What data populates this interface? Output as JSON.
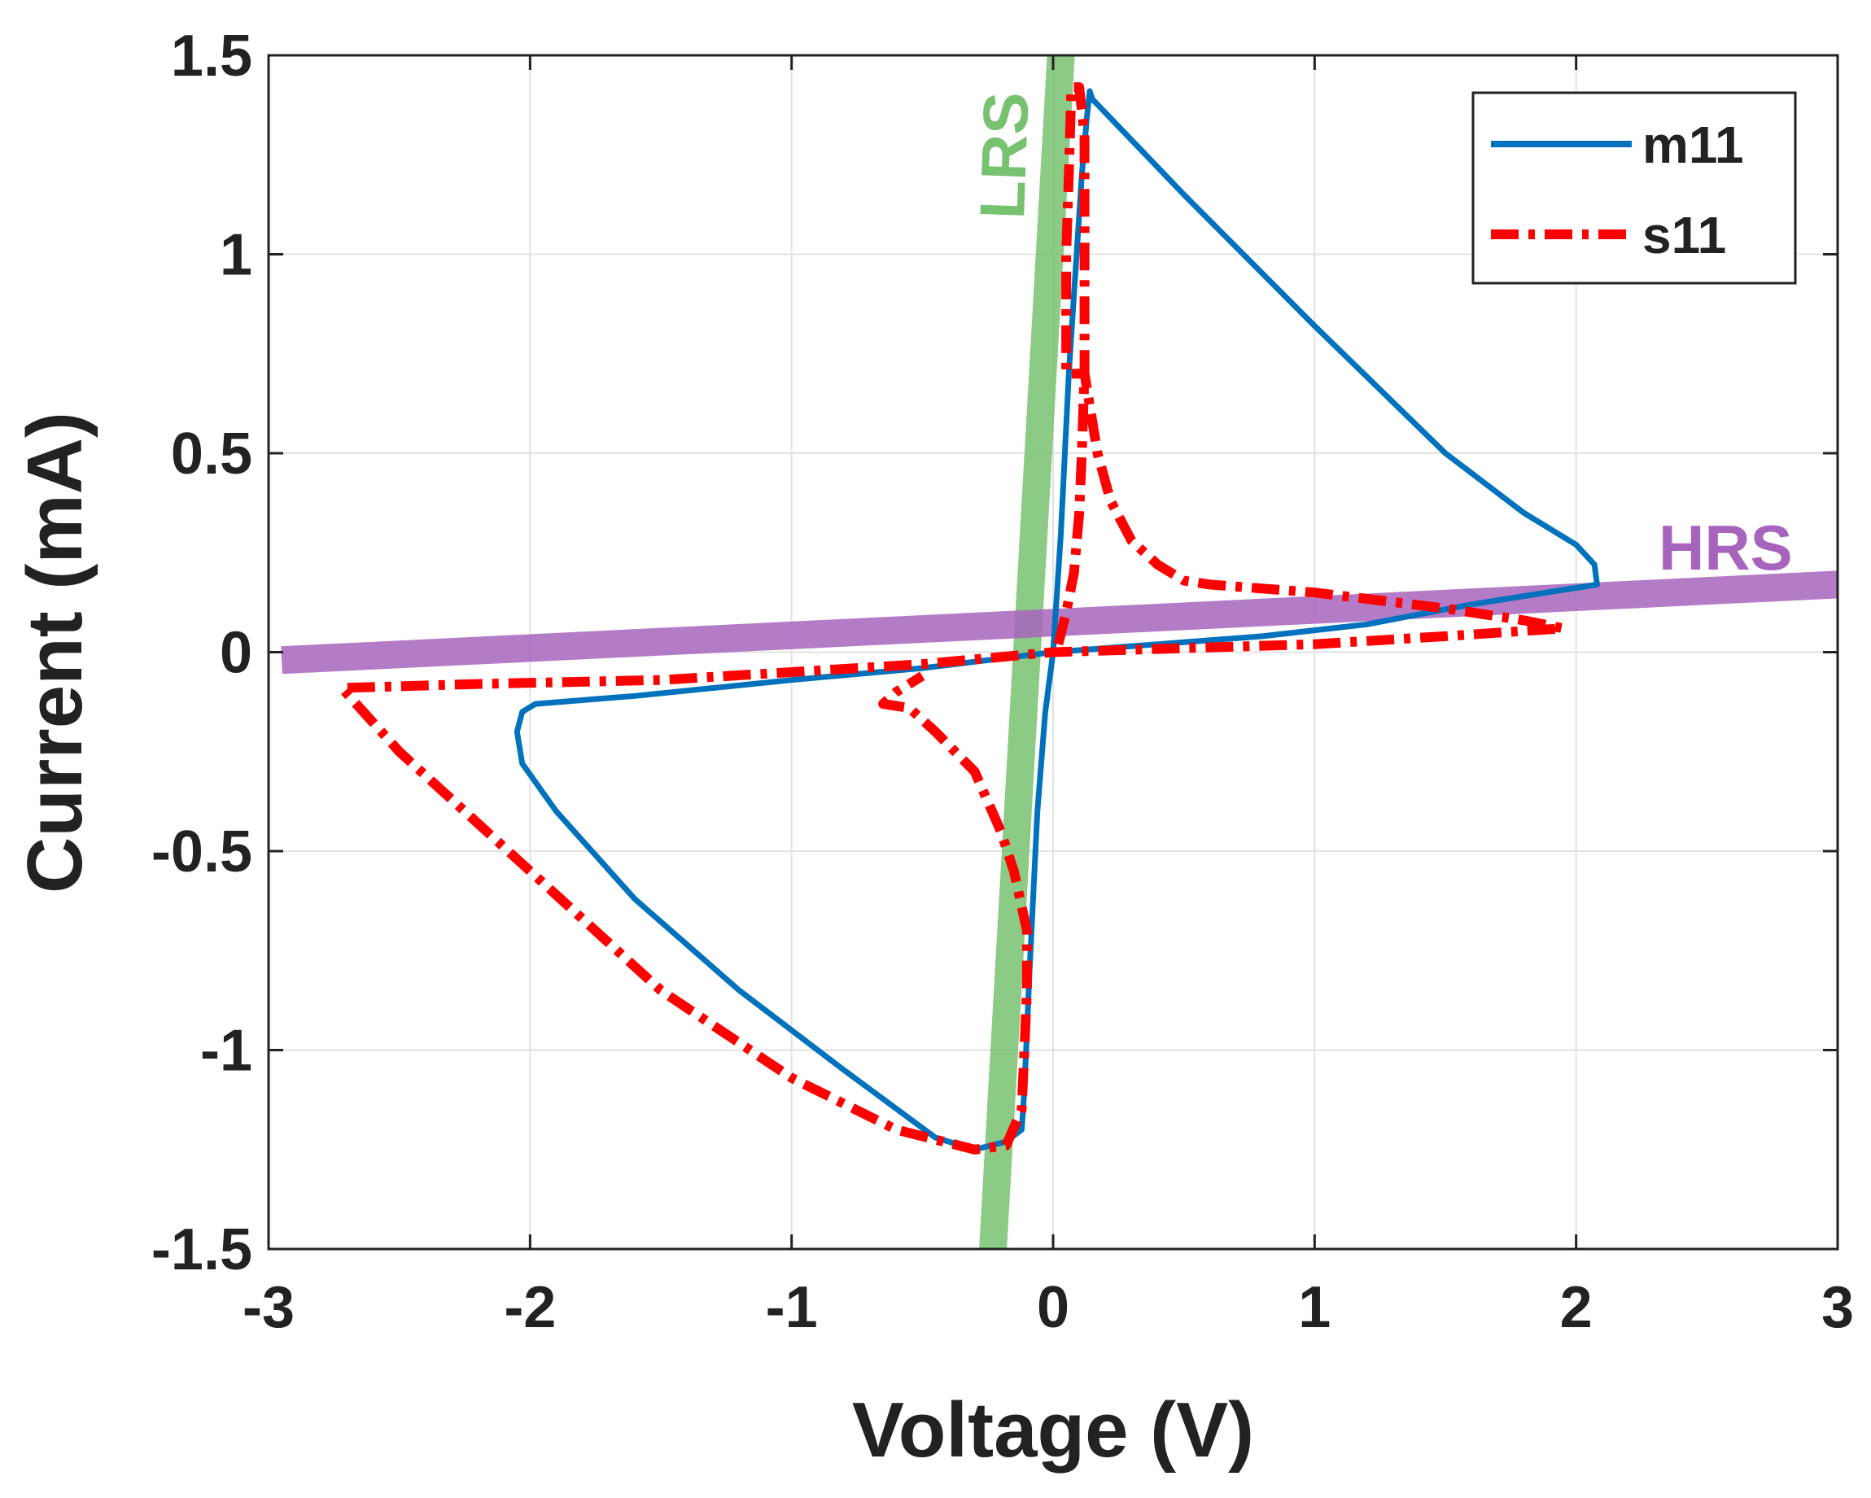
{
  "chart_data": {
    "type": "line",
    "title": "",
    "xlabel": "Voltage (V)",
    "ylabel": "Current (mA)",
    "xlim": [
      -3,
      3
    ],
    "ylim": [
      -1.5,
      1.5
    ],
    "grid": true,
    "legend_position": "top-right",
    "x_ticks": [
      {
        "value": -3,
        "label": "-3"
      },
      {
        "value": -2,
        "label": "-2"
      },
      {
        "value": -1,
        "label": "-1"
      },
      {
        "value": 0,
        "label": "0"
      },
      {
        "value": 1,
        "label": "1"
      },
      {
        "value": 2,
        "label": "2"
      },
      {
        "value": 3,
        "label": "3"
      }
    ],
    "y_ticks": [
      {
        "value": -1.5,
        "label": "-1.5"
      },
      {
        "value": -1,
        "label": "-1"
      },
      {
        "value": -0.5,
        "label": "-0.5"
      },
      {
        "value": 0,
        "label": "0"
      },
      {
        "value": 0.5,
        "label": "0.5"
      },
      {
        "value": 1,
        "label": "1"
      },
      {
        "value": 1.5,
        "label": "1.5"
      }
    ],
    "series": [
      {
        "name": "m11",
        "color": "#0072BD",
        "style": "solid",
        "points": [
          [
            0,
            0
          ],
          [
            0.03,
            0.3
          ],
          [
            0.06,
            0.7
          ],
          [
            0.09,
            1.0
          ],
          [
            0.11,
            1.2
          ],
          [
            0.13,
            1.35
          ],
          [
            0.14,
            1.41
          ],
          [
            0.15,
            1.39
          ],
          [
            0.5,
            1.15
          ],
          [
            1.0,
            0.82
          ],
          [
            1.5,
            0.5
          ],
          [
            1.8,
            0.35
          ],
          [
            2.0,
            0.27
          ],
          [
            2.07,
            0.22
          ],
          [
            2.08,
            0.17
          ],
          [
            1.6,
            0.12
          ],
          [
            1.2,
            0.07
          ],
          [
            0.8,
            0.04
          ],
          [
            0.4,
            0.02
          ],
          [
            0.0,
            0.0
          ],
          [
            -0.5,
            -0.04
          ],
          [
            -1.0,
            -0.07
          ],
          [
            -1.6,
            -0.11
          ],
          [
            -1.98,
            -0.13
          ],
          [
            -2.03,
            -0.15
          ],
          [
            -2.05,
            -0.2
          ],
          [
            -2.03,
            -0.28
          ],
          [
            -1.9,
            -0.4
          ],
          [
            -1.6,
            -0.62
          ],
          [
            -1.2,
            -0.85
          ],
          [
            -0.8,
            -1.05
          ],
          [
            -0.45,
            -1.22
          ],
          [
            -0.3,
            -1.25
          ],
          [
            -0.18,
            -1.23
          ],
          [
            -0.12,
            -1.2
          ],
          [
            -0.11,
            -1.1
          ],
          [
            -0.09,
            -0.8
          ],
          [
            -0.06,
            -0.4
          ],
          [
            -0.03,
            -0.15
          ],
          [
            0,
            0
          ]
        ]
      },
      {
        "name": "s11",
        "color": "#FF0000",
        "style": "dashdot",
        "points": [
          [
            0.02,
            0.02
          ],
          [
            0.05,
            0.1
          ],
          [
            0.08,
            0.2
          ],
          [
            0.1,
            0.35
          ],
          [
            0.11,
            0.5
          ],
          [
            0.12,
            0.7
          ],
          [
            0.12,
            0.9
          ],
          [
            0.12,
            1.1
          ],
          [
            0.12,
            1.3
          ],
          [
            0.1,
            1.42
          ],
          [
            0.07,
            1.42
          ],
          [
            0.06,
            1.2
          ],
          [
            0.05,
            1.0
          ],
          [
            0.05,
            0.7
          ],
          [
            0.12,
            0.7
          ],
          [
            0.17,
            0.5
          ],
          [
            0.22,
            0.38
          ],
          [
            0.3,
            0.28
          ],
          [
            0.4,
            0.22
          ],
          [
            0.5,
            0.18
          ],
          [
            0.6,
            0.17
          ],
          [
            1.0,
            0.15
          ],
          [
            1.5,
            0.11
          ],
          [
            1.8,
            0.08
          ],
          [
            1.95,
            0.06
          ],
          [
            1.5,
            0.04
          ],
          [
            1.0,
            0.02
          ],
          [
            0.5,
            0.01
          ],
          [
            0.0,
            0.0
          ],
          [
            -0.5,
            -0.03
          ],
          [
            -1.0,
            -0.05
          ],
          [
            -1.5,
            -0.07
          ],
          [
            -2.2,
            -0.08
          ],
          [
            -2.72,
            -0.09
          ],
          [
            -2.5,
            -0.25
          ],
          [
            -2.0,
            -0.55
          ],
          [
            -1.5,
            -0.85
          ],
          [
            -1.0,
            -1.07
          ],
          [
            -0.6,
            -1.2
          ],
          [
            -0.3,
            -1.25
          ],
          [
            -0.18,
            -1.24
          ],
          [
            -0.12,
            -1.15
          ],
          [
            -0.11,
            -1.0
          ],
          [
            -0.1,
            -0.85
          ],
          [
            -0.1,
            -0.7
          ],
          [
            -0.15,
            -0.55
          ],
          [
            -0.2,
            -0.45
          ],
          [
            -0.3,
            -0.3
          ],
          [
            -0.45,
            -0.2
          ],
          [
            -0.55,
            -0.14
          ],
          [
            -0.65,
            -0.13
          ],
          [
            -0.6,
            -0.1
          ],
          [
            -0.5,
            -0.06
          ]
        ]
      }
    ],
    "bands": [
      {
        "label": "LRS",
        "color": "#77C270",
        "from": [
          -0.23,
          -1.5
        ],
        "to": [
          0.03,
          1.5
        ]
      },
      {
        "label": "HRS",
        "color": "#A764BD",
        "from": [
          -2.95,
          -0.02
        ],
        "to": [
          3.0,
          0.17
        ]
      }
    ],
    "legend": [
      {
        "label": "m11"
      },
      {
        "label": "s11"
      }
    ]
  }
}
